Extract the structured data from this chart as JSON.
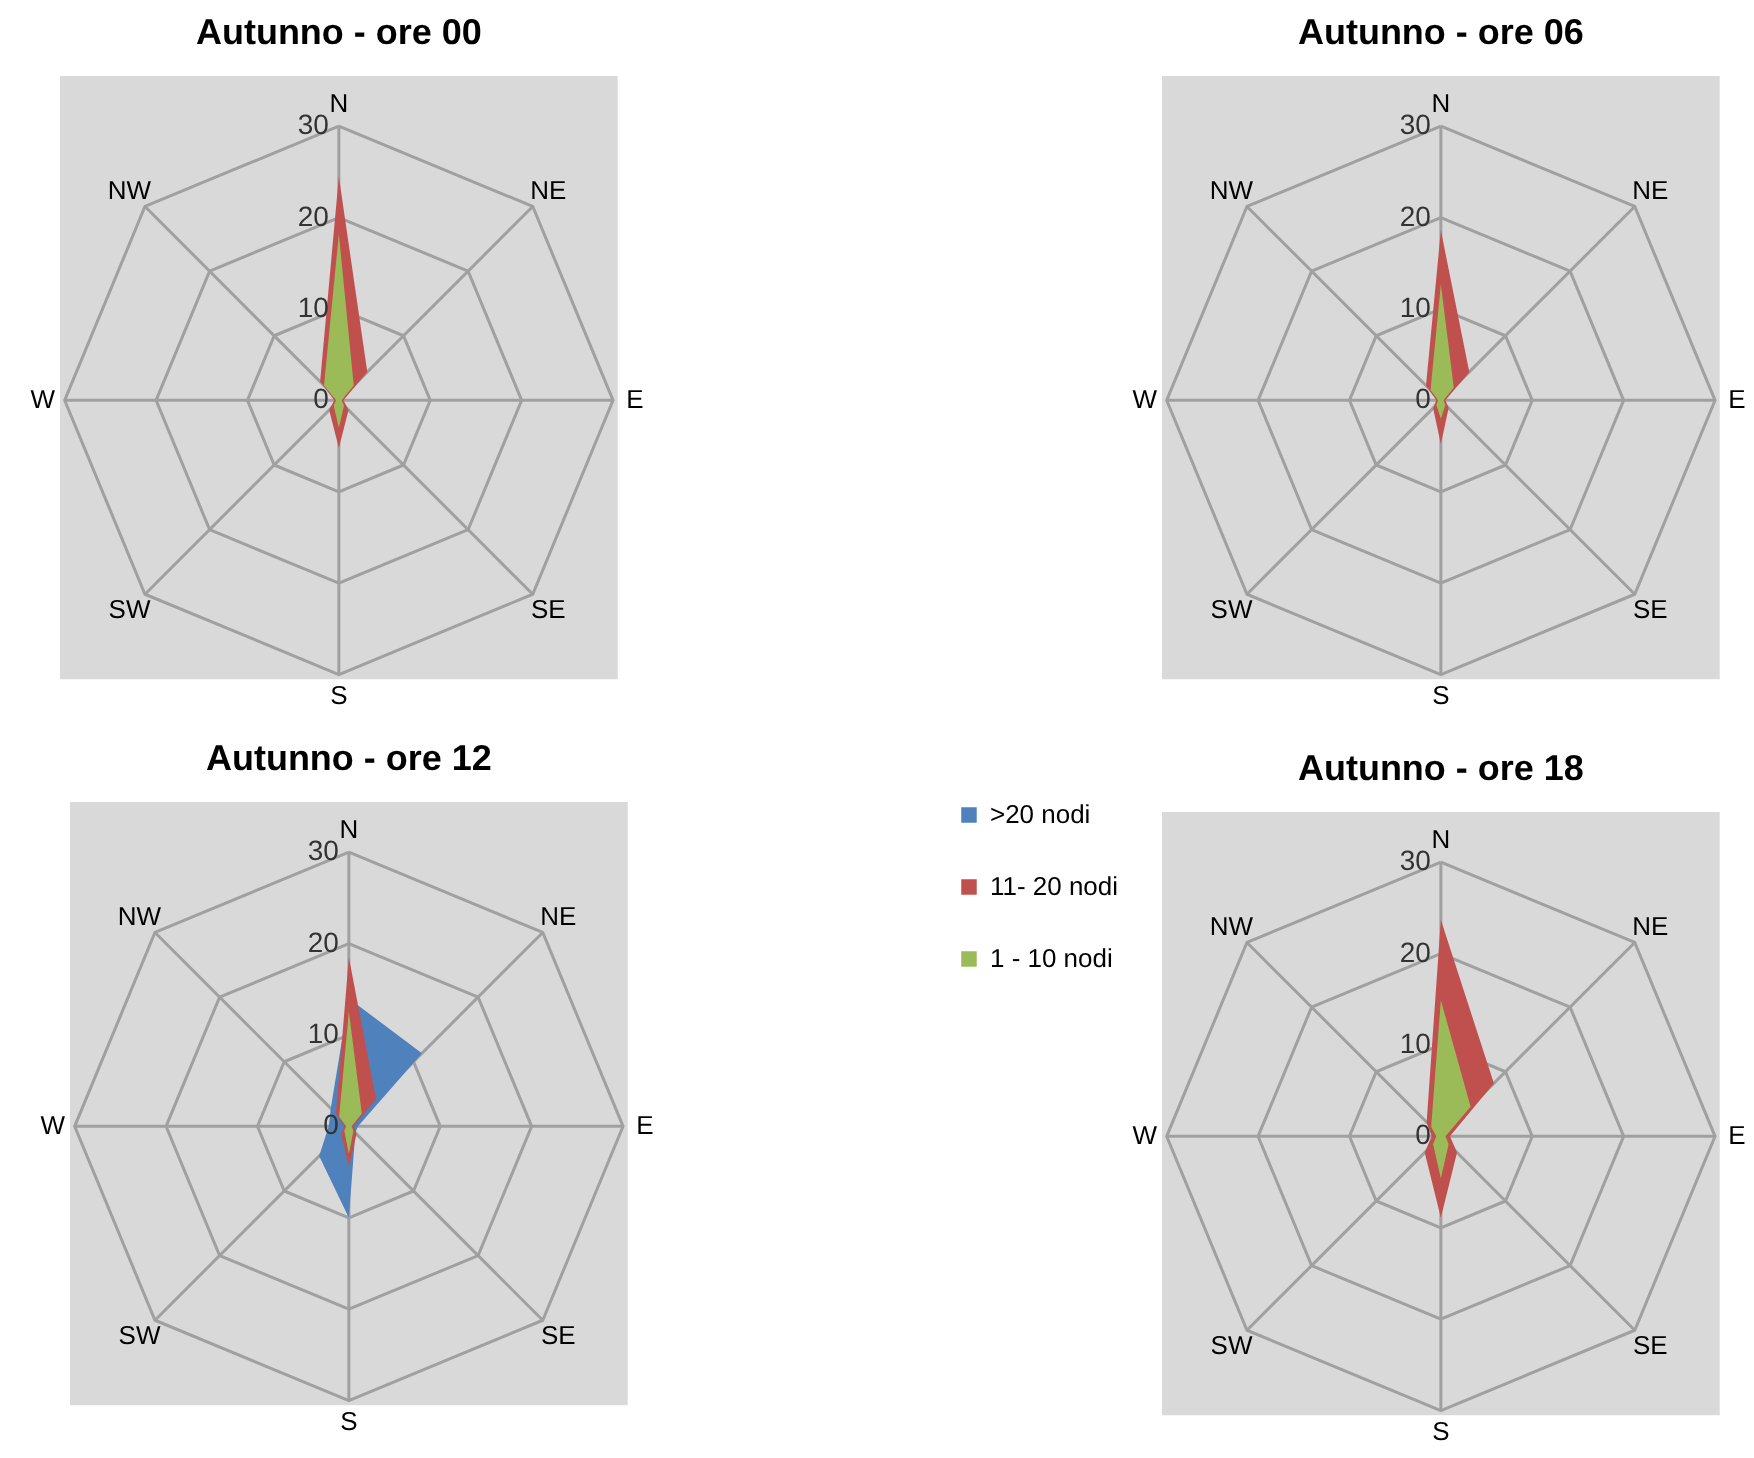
{
  "chart_data": [
    {
      "type": "radar",
      "title": "Autunno - ore 00",
      "categories": [
        "N",
        "NE",
        "E",
        "SE",
        "S",
        "SW",
        "W",
        "NW"
      ],
      "ylim": [
        0,
        30
      ],
      "yticks": [
        0,
        10,
        20,
        30
      ],
      "grid": true,
      "series": [
        {
          "color": "#c0504d",
          "values": [
            24.5,
            4.4,
            0.5,
            1.5,
            5.2,
            1.5,
            0.5,
            2.9
          ]
        },
        {
          "color": "#9bbb59",
          "values": [
            18.2,
            2.3,
            0.3,
            0.8,
            3,
            0.8,
            0.3,
            2.3
          ]
        }
      ]
    },
    {
      "type": "radar",
      "title": "Autunno - ore 06",
      "categories": [
        "N",
        "NE",
        "E",
        "SE",
        "S",
        "SW",
        "W",
        "NW"
      ],
      "ylim": [
        0,
        30
      ],
      "yticks": [
        0,
        10,
        20,
        30
      ],
      "grid": true,
      "series": [
        {
          "color": "#4f81bd",
          "values": [
            0.5,
            4.6,
            0.3,
            0.3,
            0.5,
            0.3,
            0.3,
            0.5
          ]
        },
        {
          "color": "#c0504d",
          "values": [
            18.6,
            4.4,
            0.5,
            1.2,
            4.8,
            1.2,
            0.5,
            2.3
          ]
        },
        {
          "color": "#9bbb59",
          "values": [
            12.7,
            2,
            0.3,
            0.7,
            2,
            0.7,
            0.3,
            1.6
          ]
        }
      ]
    },
    {
      "type": "radar",
      "title": "Autunno - ore 12",
      "categories": [
        "N",
        "NE",
        "E",
        "SE",
        "S",
        "SW",
        "W",
        "NW"
      ],
      "ylim": [
        0,
        30
      ],
      "yticks": [
        0,
        10,
        20,
        30
      ],
      "grid": true,
      "legend": "right",
      "series": [
        {
          "name": ">20 nodi",
          "color": "#4f81bd",
          "values": [
            14,
            11.3,
            1,
            1,
            10,
            4.6,
            2.2,
            2.8
          ]
        },
        {
          "name": "11- 20 nodi",
          "color": "#c0504d",
          "values": [
            18.5,
            4.2,
            0.5,
            1.2,
            4.4,
            1.2,
            0.5,
            2
          ]
        },
        {
          "name": "1 - 10 nodi",
          "color": "#9bbb59",
          "values": [
            12.6,
            2,
            0.3,
            0.7,
            3,
            0.7,
            0.3,
            1.5
          ]
        }
      ]
    },
    {
      "type": "radar",
      "title": "Autunno - ore 18",
      "categories": [
        "N",
        "NE",
        "E",
        "SE",
        "S",
        "SW",
        "W",
        "NW"
      ],
      "ylim": [
        0,
        30
      ],
      "yticks": [
        0,
        10,
        20,
        30
      ],
      "grid": true,
      "series": [
        {
          "color": "#4f81bd",
          "values": [
            1,
            8.4,
            0.5,
            0.5,
            1,
            0.5,
            0.5,
            1
          ]
        },
        {
          "color": "#c0504d",
          "values": [
            23.7,
            8.2,
            1,
            2.5,
            8.9,
            2.5,
            1,
            2.2
          ]
        },
        {
          "color": "#9bbb59",
          "values": [
            14.9,
            4.6,
            0.5,
            1.2,
            4.6,
            1.2,
            0.5,
            1.5
          ]
        }
      ]
    }
  ]
}
